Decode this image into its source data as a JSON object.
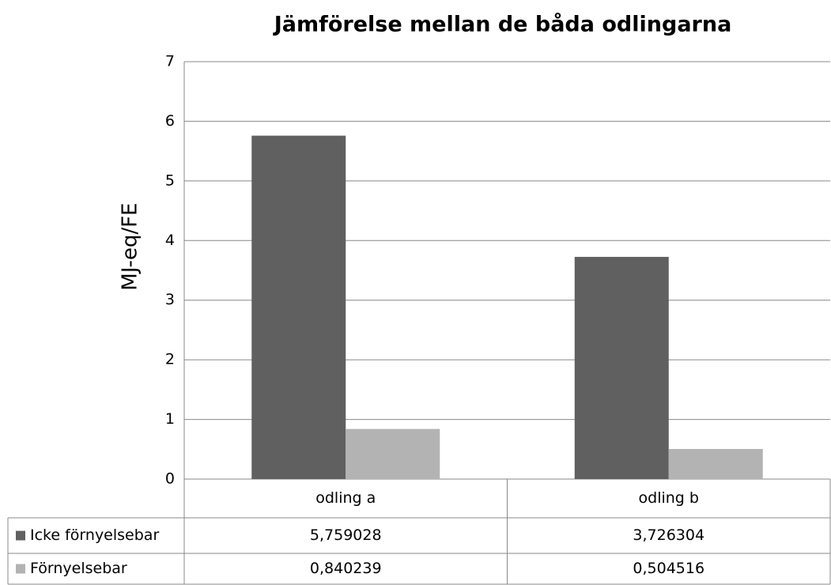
{
  "chart_data": {
    "type": "bar",
    "title": "Jämförelse mellan de båda odlingarna",
    "y_label": "MJ-eq/FE",
    "categories": [
      "odling a",
      "odling b"
    ],
    "series": [
      {
        "name": "Icke förnyelsebar",
        "color": "#606060",
        "values": [
          5.759028,
          3.726304
        ],
        "value_labels": [
          "5,759028",
          "3,726304"
        ]
      },
      {
        "name": "Förnyelsebar",
        "color": "#b3b3b3",
        "values": [
          0.840239,
          0.504516
        ],
        "value_labels": [
          "0,840239",
          "0,504516"
        ]
      }
    ],
    "ylim": [
      0,
      7
    ],
    "yticks": [
      0,
      1,
      2,
      3,
      4,
      5,
      6,
      7
    ],
    "grid": true
  }
}
